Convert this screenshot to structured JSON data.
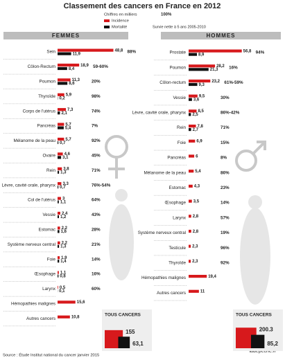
{
  "page": {
    "title": "Classement des cancers en France en 2012",
    "units": "Chiffres en milliers",
    "survival_sample": "100%",
    "survival_note": "Survie nette à 5 ans 2005-2010",
    "source": "Source : Étude Institut national du cancer janvier 2015",
    "site": "ladepeche.fr"
  },
  "chart_data": [
    {
      "type": "bar",
      "title": "FEMMES",
      "categories": [
        "Sein",
        "Côlon-Rectum",
        "Poumon",
        "Thyroïde",
        "Corps de l'utérus",
        "Pancréas",
        "Mélanome de la peau",
        "Ovaire",
        "Rein",
        "Lèvre, cavité orale, pharynx",
        "Col de l'utérus",
        "Vessie",
        "Estomac",
        "Système nerveux central",
        "Foie",
        "Œsophage",
        "Larynx",
        "Hémopathies malignes",
        "Autres cancers"
      ],
      "series": [
        {
          "name": "Incidence",
          "color": "#d7191c",
          "values": [
            48.8,
            18.9,
            11.3,
            5.9,
            7.3,
            5.7,
            5.7,
            4.6,
            3.8,
            3.3,
            3,
            2.4,
            2.2,
            2.2,
            1.9,
            1.1,
            0.5,
            15.6,
            10.8
          ],
          "value_labels": [
            "48,8",
            "18,9",
            "11,3",
            "5,9",
            "7,3",
            "5,7",
            "5,7",
            "4,6",
            "3,8",
            "3,3",
            "3",
            "2,4",
            "2,2",
            "2,2",
            "1,9",
            "1,1",
            "0,5",
            "15,6",
            "10,8"
          ]
        },
        {
          "name": "Mortalité",
          "color": "#111111",
          "values": [
            11.9,
            8.4,
            8.6,
            0.2,
            2.1,
            5.4,
            0.7,
            3.1,
            1.3,
            0.7,
            1.1,
            1.2,
            1.6,
            1.3,
            1.4,
            0.8,
            0.1,
            null,
            null
          ],
          "value_labels": [
            "11,9",
            "8,4",
            "8,6",
            "0,2",
            "2,1",
            "5,4",
            "0,7",
            "3,1",
            "1,3",
            "0,7",
            "1,1",
            "1,2",
            "1,6",
            "1,3",
            "1,4",
            "0,8",
            "0,1",
            null,
            null
          ]
        }
      ],
      "survival": [
        "88%",
        "59-60%",
        "20%",
        "98%",
        "74%",
        "7%",
        "92%",
        "45%",
        "71%",
        "76%-54%",
        "64%",
        "43%",
        "28%",
        "21%",
        "14%",
        "16%",
        "60%",
        null,
        null
      ],
      "survival_color": "#5cb82e",
      "total": {
        "label": "TOUS CANCERS",
        "incidence": 155,
        "mortality": 63.1,
        "mortality_label": "63,1"
      }
    },
    {
      "type": "bar",
      "title": "HOMMES",
      "categories": [
        "Prostate",
        "Poumon",
        "Côlon-rectum",
        "Vessie",
        "Lèvre, cavité orale, pharynx",
        "Rein",
        "Foie",
        "Pancréas",
        "Mélanome de la peau",
        "Estomac",
        "Œsophage",
        "Larynx",
        "Système nerveux central",
        "Testicule",
        "Thyroïde",
        "Hémopathies malignes",
        "Autres cancers"
      ],
      "series": [
        {
          "name": "Incidence",
          "color": "#d7191c",
          "values": [
            56.8,
            28.2,
            23.2,
            9.5,
            8.5,
            7.8,
            6.9,
            6,
            5.4,
            4.3,
            3.5,
            2.8,
            2.8,
            2.3,
            2.3,
            19.4,
            11
          ],
          "value_labels": [
            "56,8",
            "28,2",
            "23,2",
            "9,5",
            "8,5",
            "7,8",
            "6,9",
            "6",
            "5,4",
            "4,3",
            "3,5",
            "2,8",
            "2,8",
            "2,3",
            "2,3",
            "19,4",
            "11"
          ]
        },
        {
          "name": "Mortalité",
          "color": "#111111",
          "values": [
            8.9,
            21.3,
            9.3,
            3.6,
            2.5,
            2.7,
            null,
            null,
            null,
            null,
            null,
            null,
            null,
            null,
            null,
            null,
            null
          ],
          "value_labels": [
            "8,9",
            "21,3",
            "9,3",
            "3,6",
            "2,5",
            "2,7",
            null,
            null,
            null,
            null,
            null,
            null,
            null,
            null,
            null,
            null,
            null
          ]
        }
      ],
      "survival": [
        "94%",
        "16%",
        "61%-59%",
        "30%",
        "86%-42%",
        "71%",
        "15%",
        "8%",
        "86%",
        "23%",
        "14%",
        "57%",
        "19%",
        "96%",
        "92%",
        null,
        null
      ],
      "survival_color": "#5cb82e",
      "total": {
        "label": "TOUS CANCERS",
        "incidence": 200.3,
        "mortality": 85.2,
        "mortality_label": "85,2"
      }
    }
  ]
}
